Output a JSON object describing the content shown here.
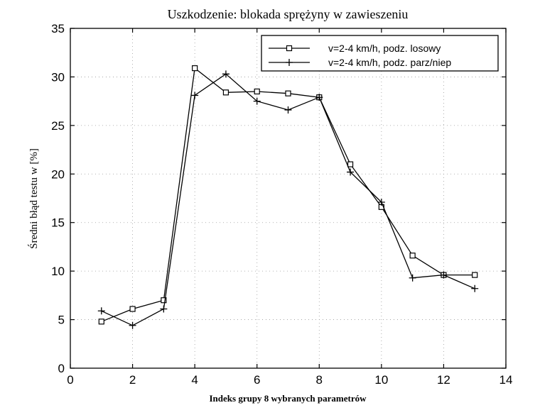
{
  "chart_data": {
    "type": "line",
    "title": "Uszkodzenie: blokada sprężyny w zawieszeniu",
    "xlabel": "Indeks grupy 8 wybranych parametrów",
    "ylabel": "Średni błąd testu w [%]",
    "xlim": [
      0,
      14
    ],
    "ylim": [
      0,
      35
    ],
    "xticks": [
      0,
      2,
      4,
      6,
      8,
      10,
      12,
      14
    ],
    "yticks": [
      0,
      5,
      10,
      15,
      20,
      25,
      30,
      35
    ],
    "grid": true,
    "legend_position": "top-right",
    "x": [
      1,
      2,
      3,
      4,
      5,
      6,
      7,
      8,
      9,
      10,
      11,
      12,
      13
    ],
    "series": [
      {
        "name": "v=2-4 km/h, podz. losowy",
        "marker": "square",
        "values": [
          4.8,
          6.1,
          7.0,
          30.9,
          28.4,
          28.5,
          28.3,
          27.9,
          21.0,
          16.6,
          11.6,
          9.6,
          9.6
        ]
      },
      {
        "name": "v=2-4 km/h, podz. parz/niep",
        "marker": "plus",
        "values": [
          5.9,
          4.4,
          6.1,
          28.1,
          30.3,
          27.5,
          26.6,
          27.9,
          20.2,
          17.1,
          9.3,
          9.6,
          8.2
        ]
      }
    ],
    "colors": {
      "line": "#000000",
      "grid": "#9a9a9a",
      "background": "#ffffff"
    }
  }
}
